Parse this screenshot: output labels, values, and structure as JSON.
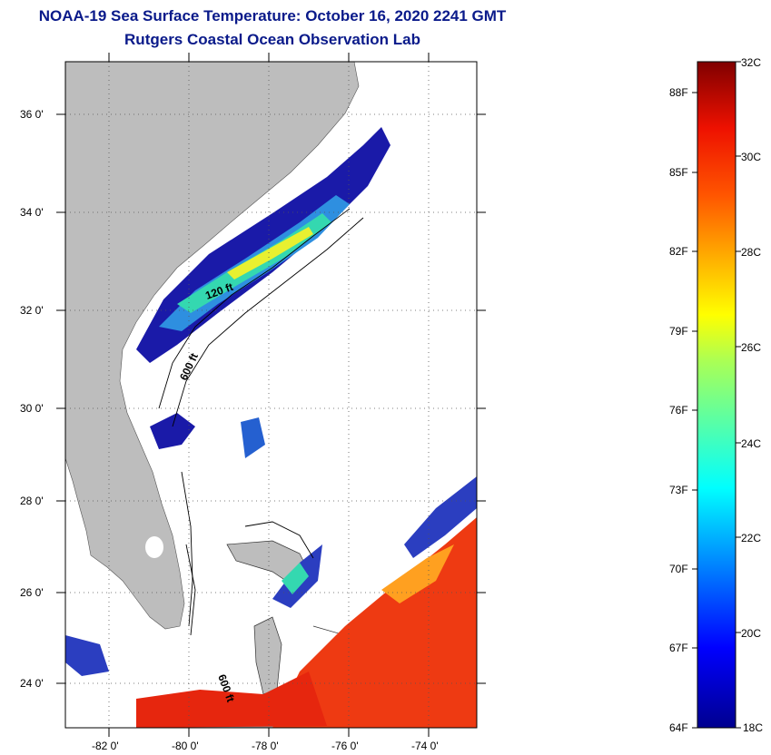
{
  "header": {
    "title": "NOAA-19 Sea Surface Temperature:  October 16, 2020 2241 GMT",
    "subtitle": "Rutgers Coastal Ocean Observation Lab"
  },
  "map": {
    "lat_labels": [
      "36 0'",
      "34 0'",
      "32 0'",
      "30 0'",
      "28 0'",
      "26 0'",
      "24 0'"
    ],
    "lon_labels": [
      "-82 0'",
      "-80 0'",
      "-78 0'",
      "-76 0'",
      "-74 0'"
    ],
    "contour_labels": [
      "120 ft",
      "600 ft",
      "600 ft"
    ],
    "land_color": "#bdbdbd",
    "water_color": "#ffffff"
  },
  "colorbar": {
    "celsius_labels": [
      "32C",
      "30C",
      "28C",
      "26C",
      "24C",
      "22C",
      "20C",
      "18C"
    ],
    "fahrenheit_labels": [
      "88F",
      "85F",
      "82F",
      "79F",
      "76F",
      "73F",
      "70F",
      "67F",
      "64F"
    ],
    "range_c": [
      18,
      32
    ]
  }
}
